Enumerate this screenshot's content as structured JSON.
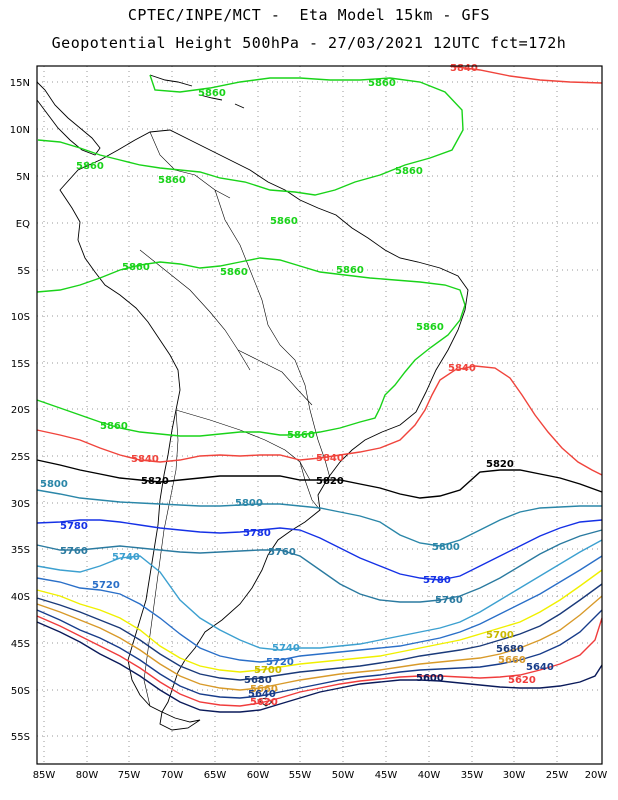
{
  "title": {
    "line1": "CPTEC/INPE/MCT -  Eta Model 15km - GFS",
    "line2": "Geopotential Height 500hPa - 27/03/2021 12UTC fct=172h"
  },
  "axes": {
    "lat_labels": [
      "15N",
      "10N",
      "5N",
      "EQ",
      "5S",
      "10S",
      "15S",
      "20S",
      "25S",
      "30S",
      "35S",
      "40S",
      "45S",
      "50S",
      "55S"
    ],
    "lon_labels": [
      "85W",
      "80W",
      "75W",
      "70W",
      "65W",
      "60W",
      "55W",
      "50W",
      "45W",
      "40W",
      "35W",
      "30W",
      "25W",
      "20W"
    ]
  },
  "contours": [
    {
      "id": "c5860",
      "value": "5860",
      "color": "#19d319"
    },
    {
      "id": "c5840",
      "value": "5840",
      "color": "#f0443c"
    },
    {
      "id": "c5820",
      "value": "5820",
      "color": "#000000"
    },
    {
      "id": "c5800",
      "value": "5800",
      "color": "#2a86a8"
    },
    {
      "id": "c5780",
      "value": "5780",
      "color": "#1531e6"
    },
    {
      "id": "c5760",
      "value": "5760",
      "color": "#2a7aa0"
    },
    {
      "id": "c5740",
      "value": "5740",
      "color": "#3ca0d0"
    },
    {
      "id": "c5720",
      "value": "5720",
      "color": "#2a6fc8"
    },
    {
      "id": "c5700",
      "value": "5700",
      "color": "#f0f000"
    },
    {
      "id": "c5680",
      "value": "5680",
      "color": "#1a3a7a"
    },
    {
      "id": "c5660",
      "value": "5660",
      "color": "#d89a2a"
    },
    {
      "id": "c5640",
      "value": "5640",
      "color": "#173c8a"
    },
    {
      "id": "c5620",
      "value": "5620",
      "color": "#f03c3c"
    },
    {
      "id": "c5600",
      "value": "5600",
      "color": "#0a1a5a"
    }
  ],
  "labels": {
    "l5860_a": "5860",
    "l5860_b": "5860",
    "l5860_c": "5860",
    "l5860_d": "5860",
    "l5860_e": "5860",
    "l5860_f": "5860",
    "l5860_g": "5860",
    "l5860_h": "5860",
    "l5860_i": "5860",
    "l5860_j": "5860",
    "l5860_k": "5860",
    "l5860_l": "5860",
    "l5840_a": "5840",
    "l5840_b": "5840",
    "l5840_c": "5840",
    "l5840_d": "5840",
    "l5820_a": "5820",
    "l5820_b": "5820",
    "l5820_c": "5820",
    "l5800_a": "5800",
    "l5800_b": "5800",
    "l5800_c": "5800",
    "l5780_a": "5780",
    "l5780_b": "5780",
    "l5780_c": "5780",
    "l5760_a": "5760",
    "l5760_b": "5760",
    "l5760_c": "5760",
    "l5740_a": "5740",
    "l5740_b": "5740",
    "l5720_a": "5720",
    "l5720_b": "5720",
    "l5700_a": "5700",
    "l5700_b": "5700",
    "l5680_a": "5680",
    "l5680_b": "5680",
    "l5660_a": "5660",
    "l5660_b": "5660",
    "l5640_a": "5640",
    "l5640_b": "5640",
    "l5620_a": "5620",
    "l5620_b": "5620",
    "l5600_a": "5600"
  },
  "colors": {
    "frame": "#000000",
    "grid": "#9a9a9a",
    "background": "#ffffff"
  }
}
